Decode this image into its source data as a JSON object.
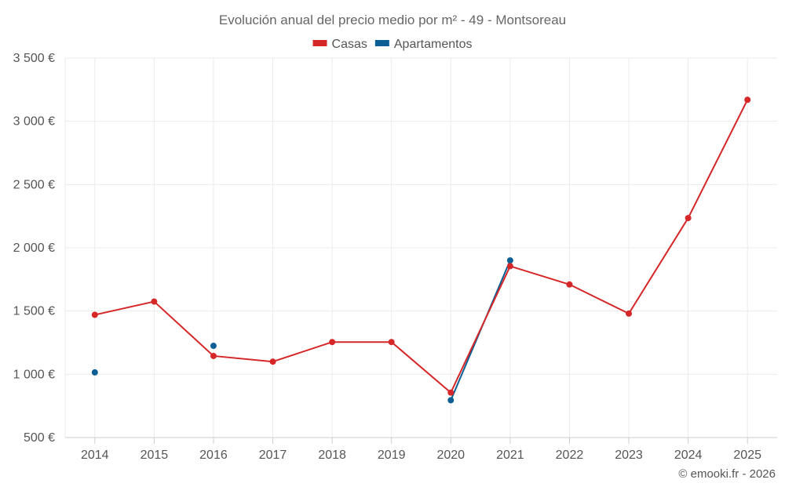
{
  "chart_data": {
    "type": "line",
    "title": "Evolución anual del precio medio por m² - 49 - Montsoreau",
    "categories": [
      "2014",
      "2015",
      "2016",
      "2017",
      "2018",
      "2019",
      "2020",
      "2021",
      "2022",
      "2023",
      "2024",
      "2025"
    ],
    "series": [
      {
        "name": "Casas",
        "color": "#d62728",
        "values": [
          1470,
          1575,
          1145,
          1100,
          1255,
          1255,
          855,
          1855,
          1710,
          1480,
          2235,
          3170
        ]
      },
      {
        "name": "Apartamentos",
        "color": "#0b5f94",
        "values": [
          1015,
          null,
          1225,
          null,
          null,
          null,
          795,
          1900,
          null,
          null,
          null,
          null
        ]
      }
    ],
    "y_ticks": [
      500,
      1000,
      1500,
      2000,
      2500,
      3000,
      3500
    ],
    "y_tick_labels": [
      "500 €",
      "1 000 €",
      "1 500 €",
      "2 000 €",
      "2 500 €",
      "3 000 €",
      "3 500 €"
    ],
    "ylim": [
      500,
      3500
    ],
    "xlabel": "",
    "ylabel": "",
    "grid": true,
    "legend_position": "top-center"
  },
  "credit": "© emooki.fr - 2026"
}
